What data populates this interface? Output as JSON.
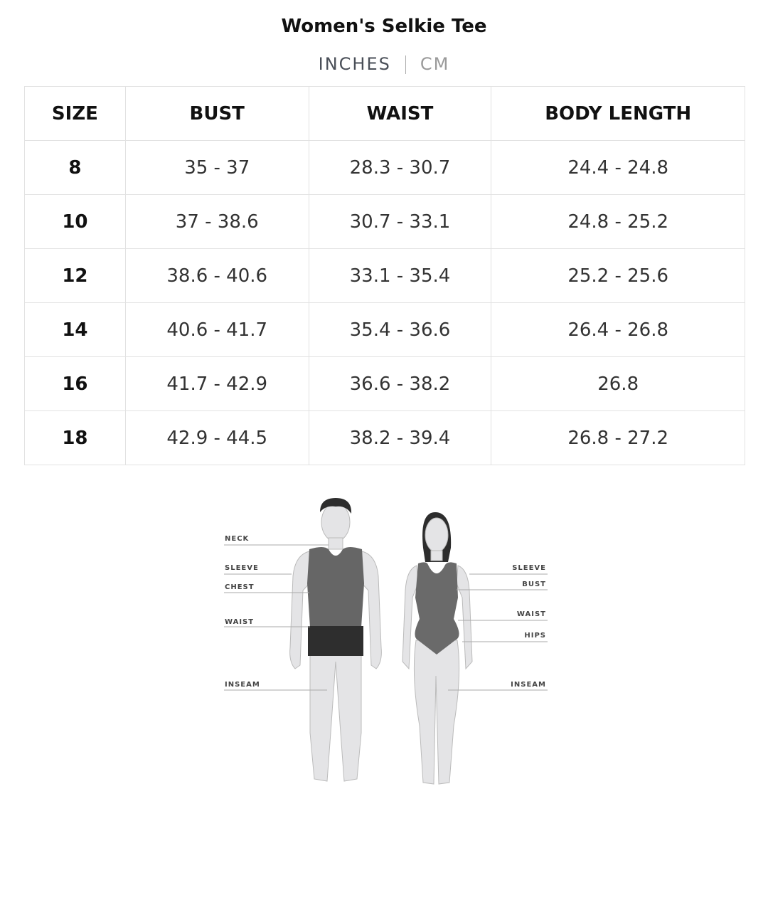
{
  "title": "Women's Selkie Tee",
  "units": {
    "active": "INCHES",
    "inactive": "CM"
  },
  "table": {
    "headers": [
      "SIZE",
      "BUST",
      "WAIST",
      "BODY LENGTH"
    ],
    "rows": [
      [
        "8",
        "35 - 37",
        "28.3 - 30.7",
        "24.4 - 24.8"
      ],
      [
        "10",
        "37 - 38.6",
        "30.7 - 33.1",
        "24.8 - 25.2"
      ],
      [
        "12",
        "38.6 - 40.6",
        "33.1 - 35.4",
        "25.2 - 25.6"
      ],
      [
        "14",
        "40.6 - 41.7",
        "35.4 - 36.6",
        "26.4 - 26.8"
      ],
      [
        "16",
        "41.7 - 42.9",
        "36.6 - 38.2",
        "26.8"
      ],
      [
        "18",
        "42.9 - 44.5",
        "38.2 - 39.4",
        "26.8 - 27.2"
      ]
    ]
  },
  "figure": {
    "male_labels": [
      "NECK",
      "SLEEVE",
      "CHEST",
      "WAIST",
      "INSEAM"
    ],
    "female_labels": [
      "SLEEVE",
      "BUST",
      "WAIST",
      "HIPS",
      "INSEAM"
    ]
  }
}
